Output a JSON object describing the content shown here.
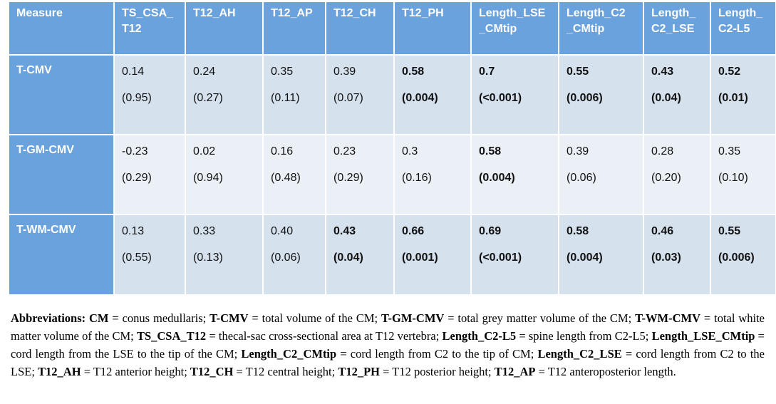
{
  "table": {
    "headers": [
      "Measure",
      "TS_CSA_ T12",
      "T12_AH",
      "T12_AP",
      "T12_CH",
      "T12_PH",
      "Length_LSE _CMtip",
      "Length_C2 _CMtip",
      "Length_ C2_LSE",
      "Length_ C2-L5"
    ],
    "rows": [
      {
        "measure": "T-CMV",
        "cells": [
          {
            "v": "0.14",
            "p": "(0.95)"
          },
          {
            "v": "0.24",
            "p": "(0.27)"
          },
          {
            "v": "0.35",
            "p": "(0.11)"
          },
          {
            "v": "0.39",
            "p": "(0.07)"
          },
          {
            "v": "0.58",
            "p": "(0.004)"
          },
          {
            "v": "0.7",
            "p": "(<0.001)"
          },
          {
            "v": "0.55",
            "p": "(0.006)"
          },
          {
            "v": "0.43",
            "p": "(0.04)"
          },
          {
            "v": "0.52",
            "p": "(0.01)"
          }
        ]
      },
      {
        "measure": "T-GM-CMV",
        "cells": [
          {
            "v": "-0.23",
            "p": "(0.29)"
          },
          {
            "v": "0.02",
            "p": "(0.94)"
          },
          {
            "v": "0.16",
            "p": "(0.48)"
          },
          {
            "v": "0.23",
            "p": "(0.29)"
          },
          {
            "v": "0.3",
            "p": "(0.16)"
          },
          {
            "v": "0.58",
            "p": "(0.004)"
          },
          {
            "v": "0.39",
            "p": "(0.06)"
          },
          {
            "v": "0.28",
            "p": "(0.20)"
          },
          {
            "v": "0.35",
            "p": "(0.10)"
          }
        ]
      },
      {
        "measure": "T-WM-CMV",
        "cells": [
          {
            "v": "0.13",
            "p": "(0.55)"
          },
          {
            "v": "0.33",
            "p": "(0.13)"
          },
          {
            "v": "0.40",
            "p": "(0.06)"
          },
          {
            "v": "0.43",
            "p": "(0.04)"
          },
          {
            "v": "0.66",
            "p": "(0.001)"
          },
          {
            "v": "0.69",
            "p": "(<0.001)"
          },
          {
            "v": "0.58",
            "p": "(0.004)"
          },
          {
            "v": "0.46",
            "p": "(0.03)"
          },
          {
            "v": "0.55",
            "p": "(0.006)"
          }
        ]
      }
    ],
    "bold_cells": [
      [
        false,
        false,
        false,
        false,
        true,
        true,
        true,
        true,
        true
      ],
      [
        false,
        false,
        false,
        false,
        false,
        true,
        false,
        false,
        false
      ],
      [
        false,
        false,
        false,
        true,
        true,
        true,
        true,
        true,
        true
      ]
    ]
  },
  "abbreviations": [
    {
      "t": "Abbreviations: CM",
      "b": true
    },
    {
      "t": " = conus medullaris; ",
      "b": false
    },
    {
      "t": "T-CMV",
      "b": true
    },
    {
      "t": " = total volume of the CM; ",
      "b": false
    },
    {
      "t": "T-GM-CMV",
      "b": true
    },
    {
      "t": " = total grey matter volume of the CM; ",
      "b": false
    },
    {
      "t": "T-WM-CMV",
      "b": true
    },
    {
      "t": " = total white matter volume of the CM; ",
      "b": false
    },
    {
      "t": "TS_CSA_T12",
      "b": true
    },
    {
      "t": " = thecal-sac cross-sectional area at T12 vertebra; ",
      "b": false
    },
    {
      "t": "Length_C2-L5",
      "b": true
    },
    {
      "t": " = spine length from C2-L5; ",
      "b": false
    },
    {
      "t": "Length_LSE_CMtip",
      "b": true
    },
    {
      "t": " = cord length from the LSE to the tip of the CM; ",
      "b": false
    },
    {
      "t": "Length_C2_CMtip",
      "b": true
    },
    {
      "t": " = cord length from C2 to the tip of CM; ",
      "b": false
    },
    {
      "t": "Length_C2_LSE",
      "b": true
    },
    {
      "t": " = cord length from C2 to the LSE; ",
      "b": false
    },
    {
      "t": "T12_AH",
      "b": true
    },
    {
      "t": " = T12 anterior height; ",
      "b": false
    },
    {
      "t": "T12_CH",
      "b": true
    },
    {
      "t": " = T12 central height; ",
      "b": false
    },
    {
      "t": "T12_PH",
      "b": true
    },
    {
      "t": " = T12 posterior height; ",
      "b": false
    },
    {
      "t": "T12_AP",
      "b": true
    },
    {
      "t": " = T12 anteroposterior length.",
      "b": false
    }
  ]
}
